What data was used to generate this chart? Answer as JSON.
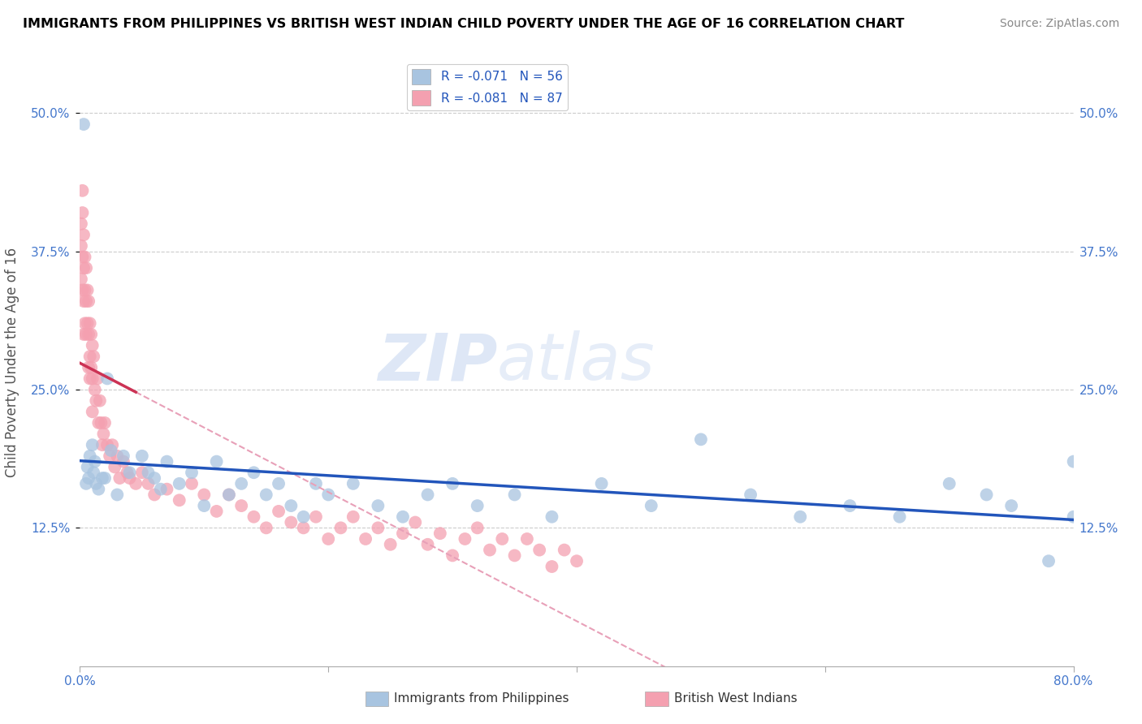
{
  "title": "IMMIGRANTS FROM PHILIPPINES VS BRITISH WEST INDIAN CHILD POVERTY UNDER THE AGE OF 16 CORRELATION CHART",
  "source": "Source: ZipAtlas.com",
  "ylabel_left": "Child Poverty Under the Age of 16",
  "ylabel_ticks": [
    "12.5%",
    "25.0%",
    "37.5%",
    "50.0%"
  ],
  "ylabel_values": [
    0.125,
    0.25,
    0.375,
    0.5
  ],
  "xmin": 0.0,
  "xmax": 0.8,
  "ymin": 0.0,
  "ymax": 0.55,
  "watermark_zip": "ZIP",
  "watermark_atlas": "atlas",
  "legend_r1": "-0.071",
  "legend_n1": "56",
  "legend_r2": "-0.081",
  "legend_n2": "87",
  "color_blue": "#A8C4E0",
  "color_pink": "#F4A0B0",
  "color_line_blue": "#2255BB",
  "color_line_pink": "#CC3355",
  "color_line_pink_dash": "#E8A0B8",
  "color_tick": "#4477CC",
  "philippines_x": [
    0.003,
    0.005,
    0.006,
    0.007,
    0.008,
    0.01,
    0.011,
    0.012,
    0.013,
    0.015,
    0.018,
    0.02,
    0.022,
    0.025,
    0.03,
    0.035,
    0.04,
    0.05,
    0.055,
    0.06,
    0.065,
    0.07,
    0.08,
    0.09,
    0.1,
    0.11,
    0.12,
    0.13,
    0.14,
    0.15,
    0.16,
    0.17,
    0.18,
    0.19,
    0.2,
    0.22,
    0.24,
    0.26,
    0.28,
    0.3,
    0.32,
    0.35,
    0.38,
    0.42,
    0.46,
    0.5,
    0.54,
    0.58,
    0.62,
    0.66,
    0.7,
    0.73,
    0.75,
    0.78,
    0.8,
    0.8
  ],
  "philippines_y": [
    0.49,
    0.165,
    0.18,
    0.17,
    0.19,
    0.2,
    0.175,
    0.185,
    0.165,
    0.16,
    0.17,
    0.17,
    0.26,
    0.195,
    0.155,
    0.19,
    0.175,
    0.19,
    0.175,
    0.17,
    0.16,
    0.185,
    0.165,
    0.175,
    0.145,
    0.185,
    0.155,
    0.165,
    0.175,
    0.155,
    0.165,
    0.145,
    0.135,
    0.165,
    0.155,
    0.165,
    0.145,
    0.135,
    0.155,
    0.165,
    0.145,
    0.155,
    0.135,
    0.165,
    0.145,
    0.205,
    0.155,
    0.135,
    0.145,
    0.135,
    0.165,
    0.155,
    0.145,
    0.095,
    0.185,
    0.135
  ],
  "bwi_x": [
    0.001,
    0.001,
    0.001,
    0.002,
    0.002,
    0.002,
    0.002,
    0.003,
    0.003,
    0.003,
    0.003,
    0.004,
    0.004,
    0.004,
    0.005,
    0.005,
    0.005,
    0.006,
    0.006,
    0.007,
    0.007,
    0.007,
    0.008,
    0.008,
    0.008,
    0.009,
    0.009,
    0.01,
    0.01,
    0.01,
    0.011,
    0.012,
    0.013,
    0.014,
    0.015,
    0.016,
    0.017,
    0.018,
    0.019,
    0.02,
    0.022,
    0.024,
    0.026,
    0.028,
    0.03,
    0.032,
    0.035,
    0.038,
    0.04,
    0.045,
    0.05,
    0.055,
    0.06,
    0.07,
    0.08,
    0.09,
    0.1,
    0.11,
    0.12,
    0.13,
    0.14,
    0.15,
    0.16,
    0.17,
    0.18,
    0.19,
    0.2,
    0.21,
    0.22,
    0.23,
    0.24,
    0.25,
    0.26,
    0.27,
    0.28,
    0.29,
    0.3,
    0.31,
    0.32,
    0.33,
    0.34,
    0.35,
    0.36,
    0.37,
    0.38,
    0.39,
    0.4
  ],
  "bwi_y": [
    0.4,
    0.38,
    0.35,
    0.43,
    0.41,
    0.37,
    0.34,
    0.39,
    0.36,
    0.33,
    0.3,
    0.37,
    0.34,
    0.31,
    0.36,
    0.33,
    0.3,
    0.34,
    0.31,
    0.33,
    0.3,
    0.27,
    0.31,
    0.28,
    0.26,
    0.3,
    0.27,
    0.29,
    0.26,
    0.23,
    0.28,
    0.25,
    0.24,
    0.26,
    0.22,
    0.24,
    0.22,
    0.2,
    0.21,
    0.22,
    0.2,
    0.19,
    0.2,
    0.18,
    0.19,
    0.17,
    0.185,
    0.175,
    0.17,
    0.165,
    0.175,
    0.165,
    0.155,
    0.16,
    0.15,
    0.165,
    0.155,
    0.14,
    0.155,
    0.145,
    0.135,
    0.125,
    0.14,
    0.13,
    0.125,
    0.135,
    0.115,
    0.125,
    0.135,
    0.115,
    0.125,
    0.11,
    0.12,
    0.13,
    0.11,
    0.12,
    0.1,
    0.115,
    0.125,
    0.105,
    0.115,
    0.1,
    0.115,
    0.105,
    0.09,
    0.105,
    0.095
  ]
}
